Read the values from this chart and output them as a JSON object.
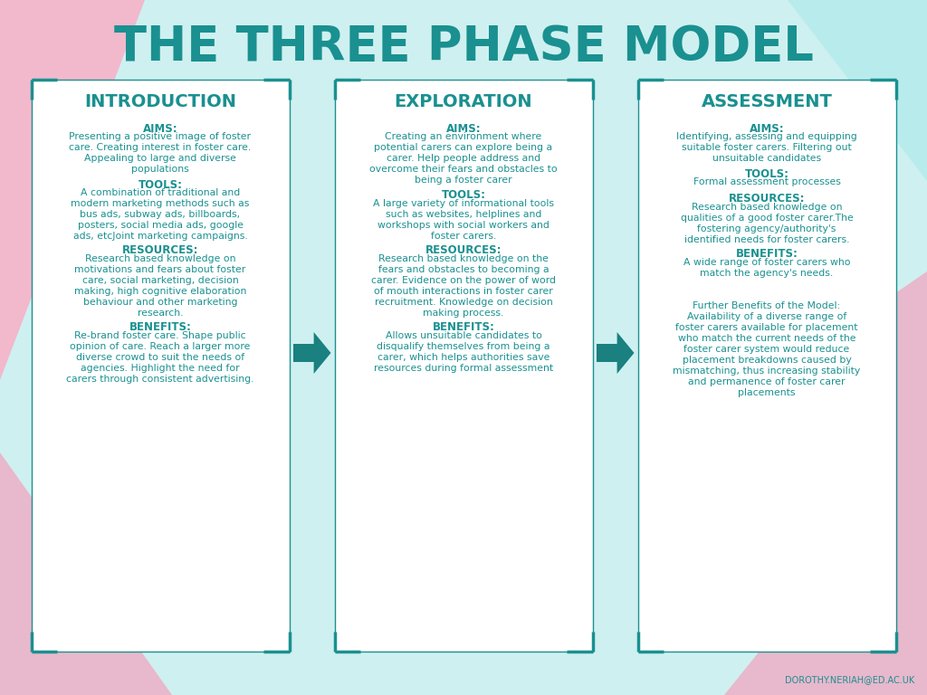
{
  "title": "THE THREE PHASE MODEL",
  "title_color": "#1a9090",
  "bg_color": "#cff0f0",
  "card_bg": "#ffffff",
  "card_border_color": "#1a9090",
  "text_color": "#1a9090",
  "arrow_color": "#1a8080",
  "footer": "DOROTHY.NERIAH@ED.AC.UK",
  "phases": [
    {
      "title": "INTRODUCTION",
      "sections": [
        {
          "header": "AIMS:",
          "body": "Presenting a positive image of foster\ncare. Creating interest in foster care.\nAppealing to large and diverse\npopulations"
        },
        {
          "header": "TOOLS:",
          "body": "A combination of traditional and\nmodern marketing methods such as\nbus ads, subway ads, billboards,\nposters, social media ads, google\nads, etcJoint marketing campaigns."
        },
        {
          "header": "RESOURCES:",
          "body": "Research based knowledge on\nmotivations and fears about foster\ncare, social marketing, decision\nmaking, high cognitive elaboration\nbehaviour and other marketing\nresearch."
        },
        {
          "header": "BENEFITS:",
          "body": "Re-brand foster care. Shape public\nopinion of care. Reach a larger more\ndiverse crowd to suit the needs of\nagencies. Highlight the need for\ncarers through consistent advertising."
        }
      ]
    },
    {
      "title": "EXPLORATION",
      "sections": [
        {
          "header": "AIMS:",
          "body": "Creating an environment where\npotential carers can explore being a\ncarer. Help people address and\novercome their fears and obstacles to\nbeing a foster carer"
        },
        {
          "header": "TOOLS:",
          "body": "A large variety of informational tools\nsuch as websites, helplines and\nworkshops with social workers and\nfoster carers."
        },
        {
          "header": "RESOURCES:",
          "body": "Research based knowledge on the\nfears and obstacles to becoming a\ncarer. Evidence on the power of word\nof mouth interactions in foster carer\nrecruitment. Knowledge on decision\nmaking process."
        },
        {
          "header": "BENEFITS:",
          "body": "Allows unsuitable candidates to\ndisqualify themselves from being a\ncarer, which helps authorities save\nresources during formal assessment"
        }
      ]
    },
    {
      "title": "ASSESSMENT",
      "sections": [
        {
          "header": "AIMS:",
          "body": "Identifying, assessing and equipping\nsuitable foster carers. Filtering out\nunsuitable candidates"
        },
        {
          "header": "TOOLS:",
          "body": "Formal assessment processes"
        },
        {
          "header": "RESOURCES:",
          "body": "Research based knowledge on\nqualities of a good foster carer.The\nfostering agency/authority's\nidentified needs for foster carers."
        },
        {
          "header": "BENEFITS:",
          "body": "A wide range of foster carers who\nmatch the agency's needs.\n\n\nFurther Benefits of the Model:\nAvailability of a diverse range of\nfoster carers available for placement\nwho match the current needs of the\nfoster carer system would reduce\nplacement breakdowns caused by\nmismatching, thus increasing stability\nand permanence of foster carer\nplacements"
        }
      ]
    }
  ]
}
